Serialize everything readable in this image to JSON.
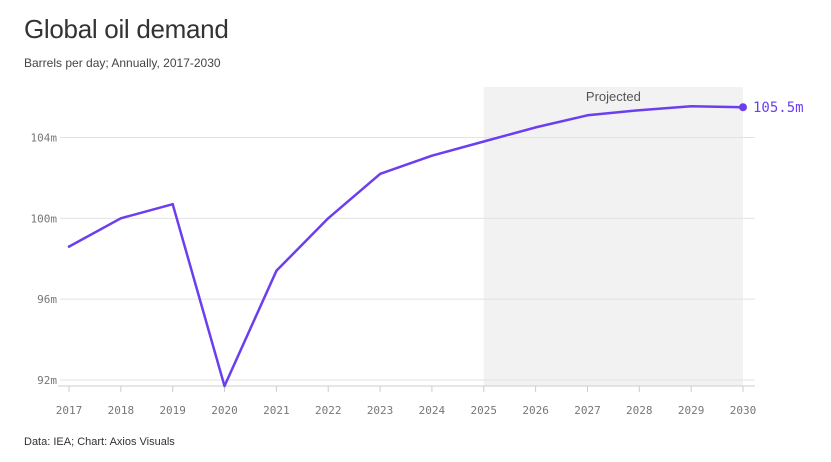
{
  "chart_data": {
    "type": "line",
    "title": "Global oil demand",
    "subtitle": "Barrels per day; Annually, 2017-2030",
    "source": "Data: IEA; Chart: Axios Visuals",
    "x": [
      "2017",
      "2018",
      "2019",
      "2020",
      "2021",
      "2022",
      "2023",
      "2024",
      "2025",
      "2026",
      "2027",
      "2028",
      "2029",
      "2030"
    ],
    "series": [
      {
        "values": [
          98.6,
          100.0,
          100.7,
          91.7,
          97.4,
          100.0,
          102.2,
          103.1,
          103.8,
          104.5,
          105.1,
          105.35,
          105.55,
          105.5
        ],
        "color": "#6b3ef0"
      }
    ],
    "ylim": [
      91.7,
      106.5
    ],
    "y_ticks": [
      92,
      96,
      100,
      104
    ],
    "y_tick_labels": [
      "92m",
      "96m",
      "100m",
      "104m"
    ],
    "grid": true,
    "projected_region": {
      "label": "Projected",
      "start": "2025",
      "end": "2030",
      "color": "#f2f2f2"
    },
    "end_label": "105.5m"
  }
}
